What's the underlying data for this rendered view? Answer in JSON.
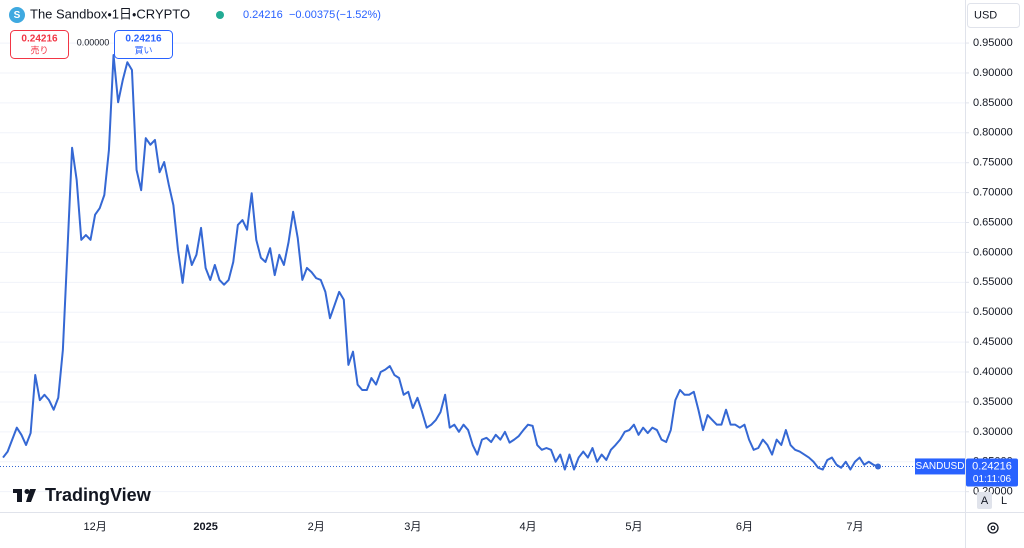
{
  "chart_data": {
    "type": "line",
    "title": "The Sandbox・1日・CRYPTO",
    "categories": [
      null,
      null,
      null,
      null,
      null,
      null,
      null,
      null,
      null,
      null,
      null,
      null,
      null,
      null,
      null,
      null,
      null,
      null,
      null,
      null,
      "12月",
      null,
      null,
      null,
      null,
      null,
      null,
      null,
      null,
      null,
      null,
      null,
      null,
      null,
      null,
      null,
      null,
      null,
      null,
      null,
      null,
      null,
      null,
      null,
      "2025",
      null,
      null,
      null,
      null,
      null,
      null,
      null,
      null,
      null,
      null,
      null,
      null,
      null,
      null,
      null,
      null,
      null,
      null,
      null,
      null,
      null,
      null,
      null,
      "2月",
      null,
      null,
      null,
      null,
      null,
      null,
      null,
      null,
      null,
      null,
      null,
      null,
      null,
      null,
      null,
      null,
      null,
      null,
      null,
      null,
      "3月",
      null,
      null,
      null,
      null,
      null,
      null,
      null,
      null,
      null,
      null,
      null,
      null,
      null,
      null,
      null,
      null,
      null,
      null,
      null,
      null,
      null,
      null,
      null,
      null,
      "4月",
      null,
      null,
      null,
      null,
      null,
      null,
      null,
      null,
      null,
      null,
      null,
      null,
      null,
      null,
      null,
      null,
      null,
      null,
      null,
      null,
      null,
      null,
      "5月",
      null,
      null,
      null,
      null,
      null,
      null,
      null,
      null,
      null,
      null,
      null,
      null,
      null,
      null,
      null,
      null,
      null,
      null,
      null,
      null,
      null,
      null,
      null,
      "6月",
      null,
      null,
      null,
      null,
      null,
      null,
      null,
      null,
      null,
      null,
      null,
      null,
      null,
      null,
      null,
      null,
      null,
      null,
      null,
      null,
      null,
      null,
      null,
      "7月",
      null,
      null,
      null,
      null,
      null
    ],
    "series": [
      {
        "name": "SANDUSD",
        "color": "#3568d4",
        "values": [
          0.257,
          0.267,
          0.287,
          0.307,
          0.295,
          0.278,
          0.298,
          0.395,
          0.353,
          0.362,
          0.353,
          0.337,
          0.357,
          0.437,
          0.604,
          0.775,
          0.721,
          0.621,
          0.629,
          0.621,
          0.663,
          0.674,
          0.696,
          0.771,
          0.93,
          0.851,
          0.888,
          0.918,
          0.905,
          0.738,
          0.704,
          0.791,
          0.78,
          0.788,
          0.734,
          0.751,
          0.713,
          0.679,
          0.604,
          0.549,
          0.612,
          0.579,
          0.596,
          0.641,
          0.574,
          0.554,
          0.579,
          0.554,
          0.546,
          0.554,
          0.584,
          0.646,
          0.654,
          0.638,
          0.699,
          0.621,
          0.591,
          0.584,
          0.607,
          0.562,
          0.596,
          0.579,
          0.617,
          0.668,
          0.624,
          0.554,
          0.574,
          0.567,
          0.557,
          0.554,
          0.534,
          0.49,
          0.512,
          0.534,
          0.521,
          0.412,
          0.434,
          0.379,
          0.37,
          0.37,
          0.39,
          0.379,
          0.4,
          0.404,
          0.41,
          0.395,
          0.39,
          0.362,
          0.367,
          0.34,
          0.357,
          0.333,
          0.307,
          0.312,
          0.32,
          0.333,
          0.362,
          0.307,
          0.312,
          0.3,
          0.312,
          0.303,
          0.278,
          0.262,
          0.287,
          0.29,
          0.283,
          0.295,
          0.287,
          0.3,
          0.282,
          0.287,
          0.293,
          0.303,
          0.312,
          0.31,
          0.278,
          0.27,
          0.273,
          0.27,
          0.25,
          0.262,
          0.237,
          0.262,
          0.237,
          0.257,
          0.267,
          0.257,
          0.273,
          0.25,
          0.262,
          0.253,
          0.27,
          0.278,
          0.287,
          0.3,
          0.303,
          0.312,
          0.295,
          0.307,
          0.298,
          0.307,
          0.303,
          0.287,
          0.283,
          0.303,
          0.353,
          0.37,
          0.362,
          0.362,
          0.367,
          0.337,
          0.303,
          0.328,
          0.32,
          0.312,
          0.312,
          0.337,
          0.312,
          0.312,
          0.307,
          0.312,
          0.287,
          0.27,
          0.273,
          0.287,
          0.278,
          0.262,
          0.287,
          0.278,
          0.303,
          0.278,
          0.27,
          0.267,
          0.262,
          0.257,
          0.25,
          0.24,
          0.237,
          0.253,
          0.257,
          0.245,
          0.24,
          0.25,
          0.237,
          0.25,
          0.257,
          0.245,
          0.25,
          0.245,
          0.242
        ]
      }
    ],
    "ylim": [
      0.166,
      1.022
    ],
    "yticks": [
      {
        "value": 0.2,
        "label": "0.20000"
      },
      {
        "value": 0.25,
        "label": "0.25000"
      },
      {
        "value": 0.3,
        "label": "0.30000"
      },
      {
        "value": 0.35,
        "label": "0.35000"
      },
      {
        "value": 0.4,
        "label": "0.40000"
      },
      {
        "value": 0.45,
        "label": "0.45000"
      },
      {
        "value": 0.5,
        "label": "0.50000"
      },
      {
        "value": 0.55,
        "label": "0.55000"
      },
      {
        "value": 0.6,
        "label": "0.60000"
      },
      {
        "value": 0.65,
        "label": "0.65000"
      },
      {
        "value": 0.7,
        "label": "0.70000"
      },
      {
        "value": 0.75,
        "label": "0.75000"
      },
      {
        "value": 0.8,
        "label": "0.80000"
      },
      {
        "value": 0.85,
        "label": "0.85000"
      },
      {
        "value": 0.9,
        "label": "0.90000"
      },
      {
        "value": 0.95,
        "label": "0.95000"
      }
    ],
    "grid": true,
    "last_value": 0.24216
  },
  "ui": {
    "logo_letter": "S",
    "price": "0.24216",
    "change": "−0.00375",
    "change_pct": "(−1.52%)",
    "sell_price": "0.24216",
    "sell_label": "売り",
    "spread": "0.00000",
    "buy_price": "0.24216",
    "buy_label": "買い",
    "currency": "USD",
    "symbol": "SANDUSD",
    "countdown": "01:11:06",
    "brand": "TradingView",
    "auto": "A",
    "log": "L"
  }
}
